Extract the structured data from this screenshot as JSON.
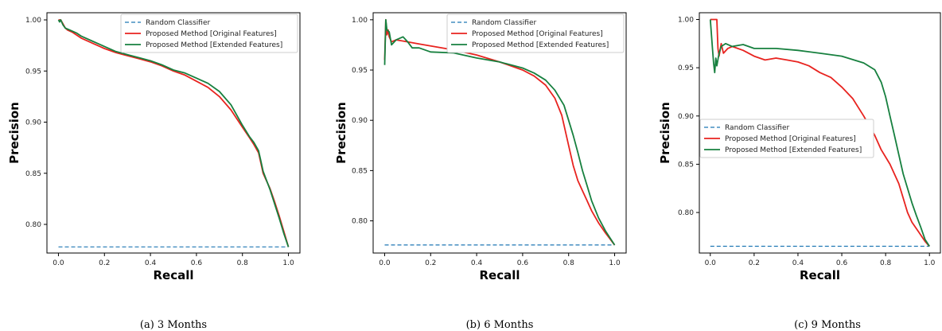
{
  "chart_data": [
    {
      "type": "line",
      "caption": "(a) 3 Months",
      "xlabel": "Recall",
      "ylabel": "Precision",
      "xlim": [
        -0.05,
        1.05
      ],
      "ylim": [
        0.772,
        1.007
      ],
      "xticks": [
        "0.0",
        "0.2",
        "0.4",
        "0.6",
        "0.8",
        "1.0"
      ],
      "yticks": [
        "0.80",
        "0.85",
        "0.90",
        "0.95",
        "1.00"
      ],
      "legend_position": "top-right",
      "series": [
        {
          "name": "Random Classifier",
          "color": "#1f77b4",
          "style": "dashed",
          "x": [
            0.0,
            1.0
          ],
          "y": [
            0.778,
            0.778
          ]
        },
        {
          "name": "Proposed Method [Original Features]",
          "color": "#e8231f",
          "style": "solid",
          "x": [
            0.0,
            0.01,
            0.02,
            0.03,
            0.04,
            0.06,
            0.08,
            0.1,
            0.15,
            0.2,
            0.25,
            0.3,
            0.35,
            0.4,
            0.45,
            0.5,
            0.55,
            0.6,
            0.65,
            0.7,
            0.75,
            0.8,
            0.83,
            0.85,
            0.87,
            0.88,
            0.89,
            0.9,
            0.92,
            0.94,
            0.96,
            0.98,
            1.0
          ],
          "y": [
            1.0,
            1.0,
            0.996,
            0.992,
            0.99,
            0.988,
            0.985,
            0.982,
            0.977,
            0.972,
            0.968,
            0.965,
            0.962,
            0.959,
            0.955,
            0.95,
            0.946,
            0.94,
            0.934,
            0.925,
            0.912,
            0.895,
            0.885,
            0.878,
            0.87,
            0.86,
            0.85,
            0.845,
            0.835,
            0.822,
            0.808,
            0.793,
            0.778
          ]
        },
        {
          "name": "Proposed Method [Extended Features]",
          "color": "#17803f",
          "style": "solid",
          "x": [
            0.0,
            0.005,
            0.01,
            0.02,
            0.03,
            0.05,
            0.08,
            0.1,
            0.15,
            0.2,
            0.25,
            0.3,
            0.35,
            0.4,
            0.45,
            0.5,
            0.55,
            0.6,
            0.65,
            0.7,
            0.75,
            0.8,
            0.83,
            0.85,
            0.87,
            0.88,
            0.89,
            0.9,
            0.92,
            0.94,
            0.96,
            0.98,
            1.0
          ],
          "y": [
            1.0,
            0.998,
            1.0,
            0.995,
            0.992,
            0.99,
            0.987,
            0.984,
            0.979,
            0.974,
            0.969,
            0.966,
            0.963,
            0.96,
            0.956,
            0.951,
            0.948,
            0.943,
            0.938,
            0.93,
            0.917,
            0.897,
            0.886,
            0.88,
            0.872,
            0.862,
            0.852,
            0.846,
            0.834,
            0.82,
            0.806,
            0.791,
            0.778
          ]
        }
      ]
    },
    {
      "type": "line",
      "caption": "(b) 6 Months",
      "xlabel": "Recall",
      "ylabel": "Precision",
      "xlim": [
        -0.05,
        1.05
      ],
      "ylim": [
        0.768,
        1.007
      ],
      "xticks": [
        "0.0",
        "0.2",
        "0.4",
        "0.6",
        "0.8",
        "1.0"
      ],
      "yticks": [
        "0.80",
        "0.85",
        "0.90",
        "0.95",
        "1.00"
      ],
      "legend_position": "top-right",
      "series": [
        {
          "name": "Random Classifier",
          "color": "#1f77b4",
          "style": "dashed",
          "x": [
            0.0,
            1.0
          ],
          "y": [
            0.776,
            0.776
          ]
        },
        {
          "name": "Proposed Method [Original Features]",
          "color": "#e8231f",
          "style": "solid",
          "x": [
            0.0,
            0.005,
            0.01,
            0.015,
            0.02,
            0.03,
            0.05,
            0.1,
            0.15,
            0.2,
            0.3,
            0.4,
            0.5,
            0.6,
            0.65,
            0.7,
            0.74,
            0.77,
            0.8,
            0.82,
            0.84,
            0.86,
            0.88,
            0.9,
            0.93,
            0.96,
            1.0
          ],
          "y": [
            0.96,
            1.0,
            0.985,
            0.99,
            0.983,
            0.978,
            0.98,
            0.978,
            0.976,
            0.974,
            0.97,
            0.965,
            0.958,
            0.95,
            0.944,
            0.935,
            0.922,
            0.905,
            0.875,
            0.855,
            0.84,
            0.83,
            0.82,
            0.81,
            0.798,
            0.788,
            0.776
          ]
        },
        {
          "name": "Proposed Method [Extended Features]",
          "color": "#17803f",
          "style": "solid",
          "x": [
            0.0,
            0.005,
            0.01,
            0.02,
            0.03,
            0.05,
            0.08,
            0.1,
            0.12,
            0.15,
            0.2,
            0.3,
            0.4,
            0.5,
            0.6,
            0.65,
            0.7,
            0.74,
            0.78,
            0.8,
            0.82,
            0.84,
            0.86,
            0.88,
            0.9,
            0.93,
            0.96,
            1.0
          ],
          "y": [
            0.955,
            1.0,
            0.99,
            0.988,
            0.975,
            0.98,
            0.983,
            0.978,
            0.972,
            0.972,
            0.968,
            0.967,
            0.962,
            0.958,
            0.952,
            0.947,
            0.94,
            0.93,
            0.915,
            0.9,
            0.885,
            0.868,
            0.85,
            0.835,
            0.82,
            0.803,
            0.79,
            0.776
          ]
        }
      ]
    },
    {
      "type": "line",
      "caption": "(c) 9 Months",
      "xlabel": "Recall",
      "ylabel": "Precision",
      "xlim": [
        -0.05,
        1.05
      ],
      "ylim": [
        0.758,
        1.007
      ],
      "xticks": [
        "0.0",
        "0.2",
        "0.4",
        "0.6",
        "0.8",
        "1.0"
      ],
      "yticks": [
        "0.80",
        "0.85",
        "0.90",
        "0.95",
        "1.00"
      ],
      "legend_position": "center-left",
      "series": [
        {
          "name": "Random Classifier",
          "color": "#1f77b4",
          "style": "dashed",
          "x": [
            0.0,
            1.0
          ],
          "y": [
            0.765,
            0.765
          ]
        },
        {
          "name": "Proposed Method [Original Features]",
          "color": "#e8231f",
          "style": "solid",
          "x": [
            0.0,
            0.02,
            0.03,
            0.035,
            0.04,
            0.05,
            0.06,
            0.08,
            0.1,
            0.15,
            0.2,
            0.25,
            0.3,
            0.35,
            0.4,
            0.45,
            0.5,
            0.55,
            0.6,
            0.65,
            0.7,
            0.75,
            0.78,
            0.82,
            0.86,
            0.88,
            0.9,
            0.92,
            0.95,
            0.98,
            1.0
          ],
          "y": [
            1.0,
            1.0,
            1.0,
            0.97,
            0.962,
            0.975,
            0.965,
            0.97,
            0.972,
            0.968,
            0.962,
            0.958,
            0.96,
            0.958,
            0.956,
            0.952,
            0.945,
            0.94,
            0.93,
            0.918,
            0.9,
            0.88,
            0.865,
            0.85,
            0.83,
            0.815,
            0.8,
            0.79,
            0.78,
            0.77,
            0.765
          ]
        },
        {
          "name": "Proposed Method [Extended Features]",
          "color": "#17803f",
          "style": "solid",
          "x": [
            0.0,
            0.01,
            0.015,
            0.02,
            0.025,
            0.03,
            0.04,
            0.05,
            0.07,
            0.1,
            0.15,
            0.2,
            0.3,
            0.4,
            0.5,
            0.6,
            0.7,
            0.75,
            0.78,
            0.8,
            0.82,
            0.84,
            0.86,
            0.88,
            0.9,
            0.92,
            0.94,
            0.96,
            0.98,
            1.0
          ],
          "y": [
            1.0,
            0.97,
            0.955,
            0.945,
            0.96,
            0.952,
            0.965,
            0.972,
            0.975,
            0.972,
            0.974,
            0.97,
            0.97,
            0.968,
            0.965,
            0.962,
            0.955,
            0.948,
            0.935,
            0.92,
            0.9,
            0.88,
            0.86,
            0.84,
            0.825,
            0.81,
            0.797,
            0.785,
            0.772,
            0.765
          ]
        }
      ]
    }
  ]
}
